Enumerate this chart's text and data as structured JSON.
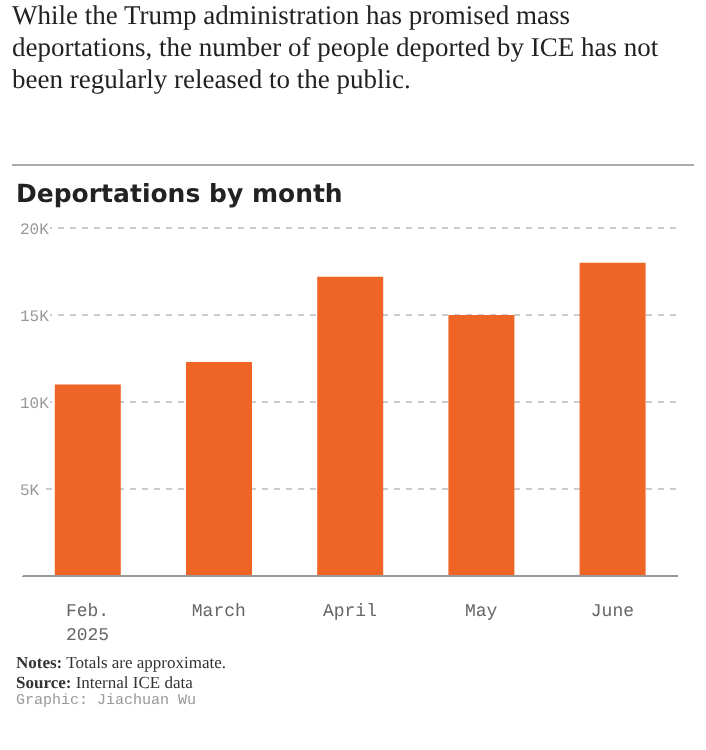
{
  "chart_data": {
    "type": "bar",
    "title": "Deportations by month",
    "categories": [
      "Feb.\n2025",
      "March",
      "April",
      "May",
      "June"
    ],
    "values": [
      11000,
      12300,
      17200,
      15000,
      18000
    ],
    "color": "#ef6526",
    "ylim": [
      0,
      20000
    ],
    "yticks": [
      {
        "value": 5000,
        "label": "5K"
      },
      {
        "value": 10000,
        "label": "10K"
      },
      {
        "value": 15000,
        "label": "15K"
      },
      {
        "value": 20000,
        "label": "20K"
      }
    ],
    "grid": "y",
    "annotations": [
      "While the Trump administration has promised mass deportations, the number of people deported by ICE has not been regularly released to the public.",
      "Notes: Totals are approximate.",
      "Source: Internal ICE data",
      "Graphic: Jiachuan Wu"
    ]
  }
}
